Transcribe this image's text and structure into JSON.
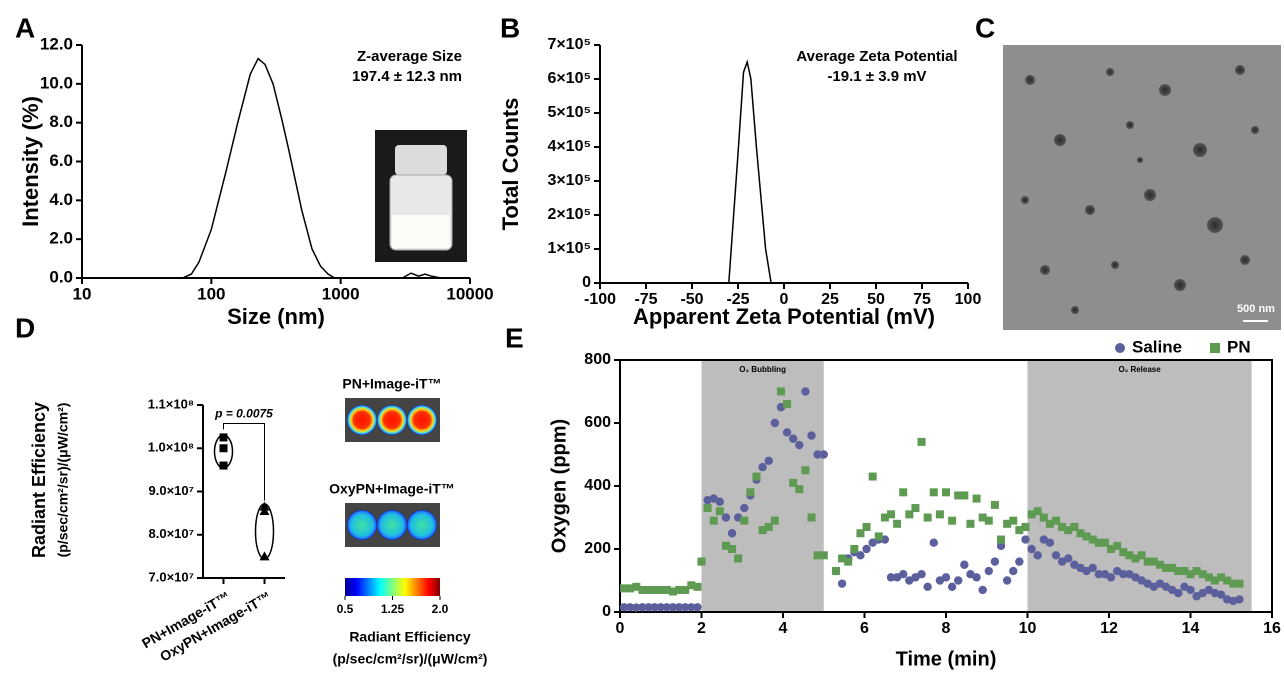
{
  "chart_data": [
    {
      "type": "line",
      "panel": "A",
      "xlabel": "Size (nm)",
      "ylabel": "Intensity (%)",
      "annotations": [
        "Z-average Size",
        "197.4 ± 12.3 nm"
      ],
      "xlog": true,
      "xlim": [
        10,
        10000
      ],
      "xticks": [
        10,
        100,
        1000,
        10000
      ],
      "ylim": [
        0,
        12
      ],
      "yticks": [
        {
          "value": 0,
          "label": "0.0"
        },
        {
          "value": 2,
          "label": "2.0"
        },
        {
          "value": 4,
          "label": "4.0"
        },
        {
          "value": 6,
          "label": "6.0"
        },
        {
          "value": 8,
          "label": "8.0"
        },
        {
          "value": 10,
          "label": "10.0"
        },
        {
          "value": 12,
          "label": "12.0"
        }
      ],
      "color": "#000000",
      "x": [
        60,
        70,
        80,
        100,
        130,
        160,
        200,
        230,
        260,
        300,
        350,
        400,
        500,
        600,
        700,
        800,
        900,
        1000,
        null,
        3000,
        3500,
        4000,
        4500,
        5000,
        6000
      ],
      "values": [
        0,
        0.2,
        0.8,
        2.5,
        5.5,
        8,
        10.5,
        11.3,
        11,
        10,
        8.2,
        6.5,
        3.5,
        1.5,
        0.6,
        0.2,
        0,
        0,
        null,
        0,
        0.25,
        0.1,
        0.2,
        0.1,
        0
      ]
    },
    {
      "type": "line",
      "panel": "B",
      "xlabel": "Apparent Zeta Potential (mV)",
      "ylabel": "Total Counts",
      "annotations": [
        "Average Zeta Potential",
        "-19.1 ± 3.9 mV"
      ],
      "xlim": [
        -100,
        100
      ],
      "xticks": [
        -100,
        -75,
        -50,
        -25,
        0,
        25,
        50,
        75,
        100
      ],
      "ylim": [
        0,
        700000
      ],
      "yticks": [
        0,
        {
          "value": 100000,
          "label": "1×10⁵"
        },
        {
          "value": 200000,
          "label": "2×10⁵"
        },
        {
          "value": 300000,
          "label": "3×10⁵"
        },
        {
          "value": 400000,
          "label": "4×10⁵"
        },
        {
          "value": 500000,
          "label": "5×10⁵"
        },
        {
          "value": 600000,
          "label": "6×10⁵"
        },
        {
          "value": 700000,
          "label": "7×10⁵"
        }
      ],
      "color": "#000000",
      "x": [
        -30,
        -25,
        -22,
        -20,
        -18,
        -15,
        -10,
        -7
      ],
      "values": [
        0,
        380000,
        620000,
        650000,
        600000,
        400000,
        100000,
        0
      ]
    },
    {
      "type": "violin",
      "panel": "D",
      "ylabel": [
        "Radiant Efficiency",
        "(p/sec/cm²/sr)/(μW/cm²)"
      ],
      "categories": [
        "PN+Image-iT™",
        "OxyPN+Image-iT™"
      ],
      "ylim": [
        70000000,
        110000000
      ],
      "yticks": [
        {
          "value": 70000000,
          "label": "7.0×10⁷"
        },
        {
          "value": 80000000,
          "label": "8.0×10⁷"
        },
        {
          "value": 90000000,
          "label": "9.0×10⁷"
        },
        {
          "value": 100000000,
          "label": "1.0×10⁸"
        },
        {
          "value": 110000000,
          "label": "1.1×10⁸"
        }
      ],
      "markers": [
        "square",
        "triangle"
      ],
      "values": [
        [
          102500000,
          100000000,
          96000000
        ],
        [
          86500000,
          85500000,
          75000000
        ]
      ],
      "annotation": "p = 0.0075"
    },
    {
      "type": "colorbar",
      "image_labels": [
        "PN+Image-iT™",
        "OxyPN+Image-iT™"
      ],
      "title": [
        "Radiant Efficiency",
        "(p/sec/cm²/sr)/(μW/cm²)"
      ],
      "xlim": [
        0.5,
        2.0
      ],
      "xticks": [
        0.5,
        1.25,
        {
          "value": 2.0,
          "label": "2.0"
        }
      ]
    },
    {
      "type": "scatter",
      "panel": "E",
      "xlabel": "Time (min)",
      "ylabel": "Oxygen (ppm)",
      "legend": "top-right",
      "xlim": [
        0,
        16
      ],
      "xticks": [
        0,
        2,
        4,
        6,
        8,
        10,
        12,
        14,
        16
      ],
      "ylim": [
        0,
        800
      ],
      "yticks": [
        0,
        200,
        400,
        600,
        800
      ],
      "regions": [
        {
          "xlim": [
            2,
            5
          ],
          "label": "O₂ Bubbling"
        },
        {
          "xlim": [
            10,
            15.5
          ],
          "label": "O₂ Release"
        }
      ],
      "x": [
        0.1,
        0.25,
        0.4,
        0.55,
        0.7,
        0.85,
        1.0,
        1.15,
        1.3,
        1.45,
        1.6,
        1.75,
        1.9,
        2.0,
        2.15,
        2.3,
        2.45,
        2.6,
        2.75,
        2.9,
        3.05,
        3.2,
        3.35,
        3.5,
        3.65,
        3.8,
        3.95,
        4.1,
        4.25,
        4.4,
        4.55,
        4.7,
        4.85,
        5.0,
        5.3,
        5.45,
        5.6,
        5.75,
        5.9,
        6.05,
        6.2,
        6.35,
        6.5,
        6.65,
        6.8,
        6.95,
        7.1,
        7.25,
        7.4,
        7.55,
        7.7,
        7.85,
        8.0,
        8.15,
        8.3,
        8.45,
        8.6,
        8.75,
        8.9,
        9.05,
        9.2,
        9.35,
        9.5,
        9.65,
        9.8,
        9.95,
        10.1,
        10.25,
        10.4,
        10.55,
        10.7,
        10.85,
        11.0,
        11.15,
        11.3,
        11.45,
        11.6,
        11.75,
        11.9,
        12.05,
        12.2,
        12.35,
        12.5,
        12.65,
        12.8,
        12.95,
        13.1,
        13.25,
        13.4,
        13.55,
        13.7,
        13.85,
        14.0,
        14.15,
        14.3,
        14.45,
        14.6,
        14.75,
        14.9,
        15.05,
        15.2
      ],
      "series": [
        {
          "name": "Saline",
          "color": "#5b5f9c",
          "marker": "circle",
          "values": [
            15,
            15,
            14,
            15,
            15,
            15,
            15,
            15,
            15,
            15,
            15,
            15,
            15,
            160,
            355,
            360,
            350,
            300,
            250,
            300,
            330,
            370,
            420,
            460,
            480,
            600,
            650,
            570,
            550,
            530,
            700,
            560,
            500,
            500,
            130,
            90,
            170,
            190,
            180,
            200,
            220,
            230,
            230,
            110,
            110,
            120,
            100,
            110,
            120,
            80,
            220,
            100,
            110,
            80,
            100,
            150,
            120,
            110,
            70,
            130,
            160,
            210,
            100,
            130,
            160,
            230,
            200,
            180,
            230,
            220,
            180,
            160,
            170,
            150,
            140,
            130,
            140,
            120,
            120,
            110,
            130,
            120,
            120,
            110,
            100,
            90,
            80,
            90,
            80,
            70,
            60,
            80,
            70,
            50,
            60,
            70,
            60,
            55,
            40,
            35,
            40
          ]
        },
        {
          "name": "PN",
          "color": "#5e9a52",
          "marker": "square",
          "values": [
            75,
            75,
            80,
            70,
            70,
            70,
            70,
            70,
            65,
            70,
            70,
            85,
            80,
            160,
            330,
            290,
            320,
            210,
            200,
            170,
            290,
            380,
            430,
            260,
            270,
            290,
            700,
            660,
            410,
            390,
            450,
            300,
            180,
            180,
            130,
            170,
            160,
            200,
            250,
            270,
            430,
            240,
            300,
            310,
            280,
            380,
            310,
            330,
            540,
            300,
            380,
            310,
            380,
            290,
            370,
            370,
            280,
            360,
            300,
            290,
            340,
            230,
            280,
            290,
            260,
            270,
            310,
            320,
            300,
            280,
            290,
            270,
            260,
            270,
            250,
            240,
            230,
            220,
            220,
            200,
            210,
            190,
            180,
            170,
            180,
            160,
            160,
            150,
            140,
            140,
            130,
            130,
            120,
            130,
            120,
            110,
            100,
            110,
            100,
            90,
            90
          ]
        }
      ]
    }
  ],
  "image_panel": {
    "panel": "C",
    "scale_bar": "500 nm"
  }
}
